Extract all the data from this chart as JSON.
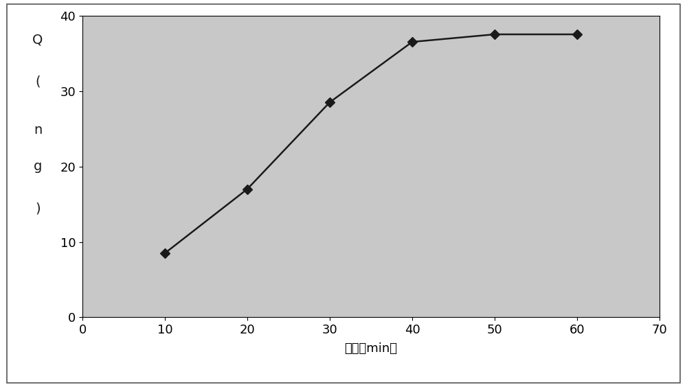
{
  "x": [
    10,
    20,
    30,
    40,
    50,
    60
  ],
  "y": [
    8.5,
    17.0,
    28.5,
    36.5,
    37.5,
    37.5
  ],
  "xlabel": "时间（min）",
  "ylabel_chars": [
    "Q",
    "(",
    "n",
    "g",
    ")"
  ],
  "xlim": [
    0,
    70
  ],
  "ylim": [
    0,
    40
  ],
  "xticks": [
    0,
    10,
    20,
    30,
    40,
    50,
    60,
    70
  ],
  "yticks": [
    0,
    10,
    20,
    30,
    40
  ],
  "plot_bg_color": "#c8c8c8",
  "fig_bg_color": "#ffffff",
  "border_color": "#555555",
  "line_color": "#1a1a1a",
  "marker": "D",
  "marker_size": 7,
  "marker_color": "#1a1a1a",
  "line_width": 1.8,
  "xlabel_fontsize": 13,
  "ylabel_fontsize": 14,
  "tick_fontsize": 13
}
